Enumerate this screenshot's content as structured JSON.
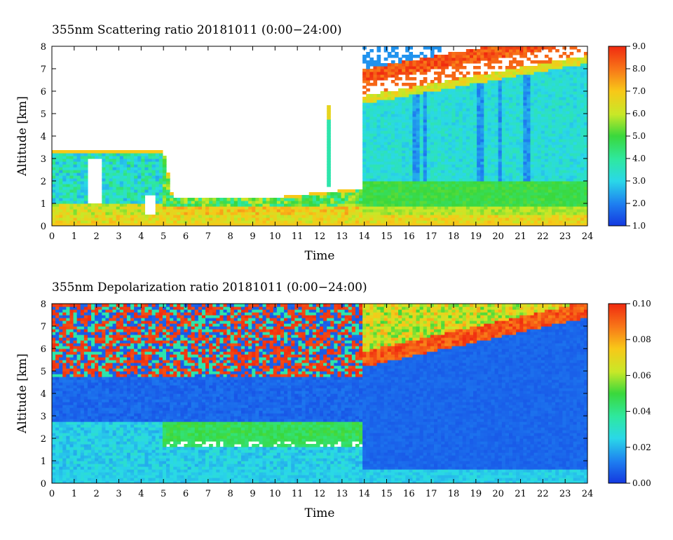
{
  "chart_data": [
    {
      "type": "heatmap",
      "title": "355nm Scattering ratio  20181011 (0:00−24:00)",
      "xlabel": "Time",
      "ylabel": "Altitude [km]",
      "xlim": [
        0,
        24
      ],
      "ylim": [
        0,
        8
      ],
      "x_ticks": [
        "0",
        "1",
        "2",
        "3",
        "4",
        "5",
        "6",
        "7",
        "8",
        "9",
        "10",
        "11",
        "12",
        "13",
        "14",
        "15",
        "16",
        "17",
        "18",
        "19",
        "20",
        "21",
        "22",
        "23",
        "24"
      ],
      "y_ticks": [
        "0",
        "1",
        "2",
        "3",
        "4",
        "5",
        "6",
        "7",
        "8"
      ],
      "colorbar": {
        "range": [
          1.0,
          9.0
        ],
        "ticks": [
          "1.0",
          "2.0",
          "3.0",
          "4.0",
          "5.0",
          "6.0",
          "7.0",
          "8.0",
          "9.0"
        ]
      },
      "features": {
        "surface_layer_top_km": 0.5,
        "boundary_layer_top_km": {
          "0-5h": 3.3,
          "5-10h": 1.2,
          "10-14h": 1.6,
          "14-24h": 2.0
        },
        "aerosol_layer_after_14h": {
          "bottom_km": 0.5,
          "top_km": 6.2,
          "typical_ratio": 3.0
        },
        "cloud_layer_after_14h": {
          "base_km_start": 5.8,
          "base_km_end": 7.6,
          "ratio": 9.0
        },
        "narrow_plume": {
          "time_h": 12.35,
          "altitude_km": [
            1.8,
            5.4
          ]
        }
      },
      "colors": {
        "low": "#1a3fdc",
        "mid": "#21e8d0",
        "high": "#f03a14"
      }
    },
    {
      "type": "heatmap",
      "title": "355nm Depolarization ratio  20181011 (0:00−24:00)",
      "xlabel": "Time",
      "ylabel": "Altitude [km]",
      "xlim": [
        0,
        24
      ],
      "ylim": [
        0,
        8
      ],
      "x_ticks": [
        "0",
        "1",
        "2",
        "3",
        "4",
        "5",
        "6",
        "7",
        "8",
        "9",
        "10",
        "11",
        "12",
        "13",
        "14",
        "15",
        "16",
        "17",
        "18",
        "19",
        "20",
        "21",
        "22",
        "23",
        "24"
      ],
      "y_ticks": [
        "0",
        "1",
        "2",
        "3",
        "4",
        "5",
        "6",
        "7",
        "8"
      ],
      "colorbar": {
        "range": [
          0.0,
          0.1
        ],
        "ticks": [
          "0.00",
          "0.02",
          "0.04",
          "0.06",
          "0.08",
          "0.10"
        ]
      },
      "features": {
        "noisy_region_before_14h_km": [
          4.8,
          8.0
        ],
        "dust_layer_5_14h": {
          "bottom_km": 1.6,
          "top_km": 2.8,
          "value": 0.04
        },
        "low_depol_after_14h_km": [
          0.0,
          5.0
        ],
        "cloud_layer_after_14h": {
          "base_km_start": 5.2,
          "base_km_end": 7.4,
          "value": 0.085
        }
      },
      "colors": {
        "low": "#1a3fdc",
        "mid": "#22d45a",
        "high": "#f03a14"
      }
    }
  ]
}
